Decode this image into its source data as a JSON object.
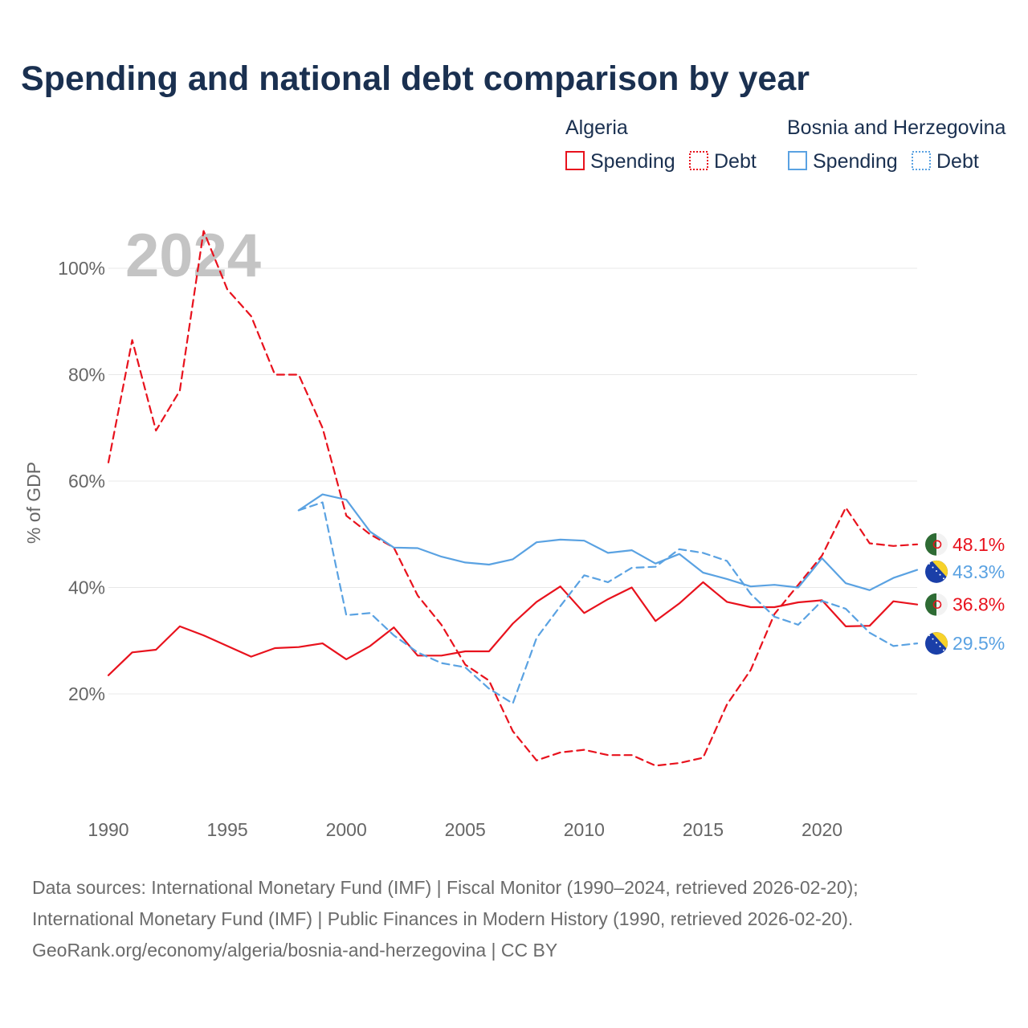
{
  "chart_data": {
    "type": "line",
    "title": "Spending and national debt comparison by year",
    "highlight_year": "2024",
    "ylabel": "% of GDP",
    "xlim": [
      1990,
      2024
    ],
    "ylim": [
      0,
      110
    ],
    "x_ticks": [
      1990,
      1995,
      2000,
      2005,
      2010,
      2015,
      2020
    ],
    "x_tick_labels": [
      "1990",
      "1995",
      "2000",
      "2005",
      "2010",
      "2015",
      "2020"
    ],
    "y_ticks": [
      20,
      40,
      60,
      80,
      100
    ],
    "y_tick_labels": [
      "20%",
      "40%",
      "60%",
      "80%",
      "100%"
    ],
    "legend": [
      {
        "group": "Algeria",
        "items": [
          "Spending",
          "Debt"
        ],
        "color": "#e8121d"
      },
      {
        "group": "Bosnia and Herzegovina",
        "items": [
          "Spending",
          "Debt"
        ],
        "color": "#5aa2e2"
      }
    ],
    "series": [
      {
        "name": "Algeria Debt",
        "country": "Algeria",
        "metric": "Debt",
        "color": "#e8121d",
        "dashed": true,
        "end_label": "48.1%",
        "flag": "algeria-flag-icon",
        "x": [
          1990,
          1991,
          1992,
          1993,
          1994,
          1995,
          1996,
          1997,
          1998,
          1999,
          2000,
          2001,
          2002,
          2003,
          2004,
          2005,
          2006,
          2007,
          2008,
          2009,
          2010,
          2011,
          2012,
          2013,
          2014,
          2015,
          2016,
          2017,
          2018,
          2019,
          2020,
          2021,
          2022,
          2023,
          2024
        ],
        "values": [
          63.5,
          86.5,
          69.5,
          77,
          107,
          96,
          91,
          80,
          80,
          70,
          53.5,
          50,
          47.5,
          38.5,
          33,
          25.5,
          22.5,
          13,
          7.5,
          9,
          9.5,
          8.5,
          8.5,
          6.5,
          7,
          8,
          18,
          24.5,
          35,
          40.5,
          46,
          55,
          48.3,
          47.8,
          48.1
        ]
      },
      {
        "name": "Algeria Spending",
        "country": "Algeria",
        "metric": "Spending",
        "color": "#e8121d",
        "dashed": false,
        "end_label": "36.8%",
        "flag": "algeria-flag-icon",
        "x": [
          1990,
          1991,
          1992,
          1993,
          1994,
          1995,
          1996,
          1997,
          1998,
          1999,
          2000,
          2001,
          2002,
          2003,
          2004,
          2005,
          2006,
          2007,
          2008,
          2009,
          2010,
          2011,
          2012,
          2013,
          2014,
          2015,
          2016,
          2017,
          2018,
          2019,
          2020,
          2021,
          2022,
          2023,
          2024
        ],
        "values": [
          23.5,
          27.8,
          28.3,
          32.7,
          31,
          29,
          27,
          28.6,
          28.8,
          29.5,
          26.5,
          29,
          32.5,
          27.2,
          27.2,
          28,
          28,
          33.2,
          37.3,
          40.2,
          35.2,
          37.8,
          40,
          33.7,
          37,
          41,
          37.3,
          36.3,
          36.3,
          37.2,
          37.6,
          32.7,
          32.8,
          37.4,
          36.8
        ]
      },
      {
        "name": "Bosnia and Herzegovina Spending",
        "country": "Bosnia and Herzegovina",
        "metric": "Spending",
        "color": "#5aa2e2",
        "dashed": false,
        "end_label": "43.3%",
        "flag": "bosnia-flag-icon",
        "x": [
          1998,
          1999,
          2000,
          2001,
          2002,
          2003,
          2004,
          2005,
          2006,
          2007,
          2008,
          2009,
          2010,
          2011,
          2012,
          2013,
          2014,
          2015,
          2016,
          2017,
          2018,
          2019,
          2020,
          2021,
          2022,
          2023,
          2024
        ],
        "values": [
          54.5,
          57.5,
          56.5,
          50.5,
          47.5,
          47.4,
          45.8,
          44.7,
          44.3,
          45.3,
          48.5,
          49,
          48.8,
          46.5,
          47,
          44.5,
          46.3,
          42.8,
          41.6,
          40.2,
          40.5,
          40,
          45.5,
          40.8,
          39.5,
          41.8,
          43.3
        ]
      },
      {
        "name": "Bosnia and Herzegovina Debt",
        "country": "Bosnia and Herzegovina",
        "metric": "Debt",
        "color": "#5aa2e2",
        "dashed": true,
        "end_label": "29.5%",
        "flag": "bosnia-flag-icon",
        "x": [
          1998,
          1999,
          2000,
          2001,
          2002,
          2003,
          2004,
          2005,
          2006,
          2007,
          2008,
          2009,
          2010,
          2011,
          2012,
          2013,
          2014,
          2015,
          2016,
          2017,
          2018,
          2019,
          2020,
          2021,
          2022,
          2023,
          2024
        ],
        "values": [
          54.5,
          56,
          34.8,
          35.2,
          31,
          27.8,
          25.8,
          25,
          21,
          18.2,
          30.5,
          36.5,
          42.3,
          41,
          43.7,
          43.9,
          47.2,
          46.5,
          45,
          38.8,
          34.5,
          33,
          37.5,
          36,
          31.5,
          29,
          29.5
        ]
      }
    ]
  },
  "footer": {
    "line1": "Data sources: International Monetary Fund (IMF) | Fiscal Monitor (1990–2024, retrieved 2026-02-20);",
    "line2": "International Monetary Fund (IMF) | Public Finances in Modern History (1990, retrieved 2026-02-20).",
    "line3": "GeoRank.org/economy/algeria/bosnia-and-herzegovina | CC BY"
  },
  "colors": {
    "algeria": "#e8121d",
    "bosnia": "#5aa2e2",
    "title": "#1a3050"
  }
}
